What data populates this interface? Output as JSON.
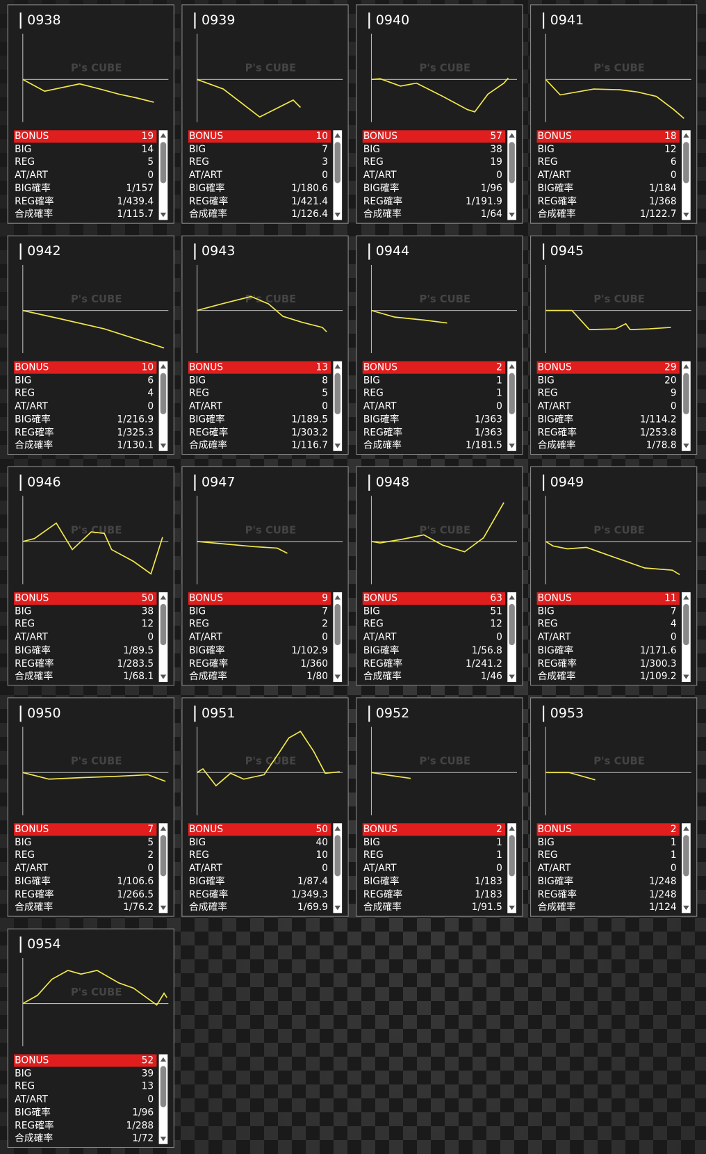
{
  "row_labels": [
    "BONUS",
    "BIG",
    "REG",
    "AT/ART",
    "BIG確率",
    "REG確率",
    "合成確率"
  ],
  "watermark": "P's CUBE",
  "graph_xlim": [
    0,
    100
  ],
  "graph_ylim": [
    -60,
    60
  ],
  "cards": [
    {
      "id": "0938",
      "values": [
        19,
        14,
        5,
        0,
        "1/157",
        "1/439.4",
        "1/115.7"
      ],
      "graph": {
        "x": [
          0,
          15,
          39,
          53,
          66,
          78,
          90
        ],
        "y": [
          0,
          -16,
          -6,
          -13,
          -20,
          -25,
          -31
        ]
      }
    },
    {
      "id": "0939",
      "values": [
        10,
        7,
        3,
        0,
        "1/180.6",
        "1/421.4",
        "1/126.4"
      ],
      "graph": {
        "x": [
          0,
          18,
          43,
          66,
          71
        ],
        "y": [
          0,
          -13,
          -51,
          -28,
          -38
        ]
      }
    },
    {
      "id": "0940",
      "values": [
        57,
        38,
        19,
        0,
        "1/96",
        "1/191.9",
        "1/64"
      ],
      "graph": {
        "x": [
          0,
          6,
          20,
          31,
          49,
          66,
          71,
          80,
          91,
          94
        ],
        "y": [
          0,
          1,
          -9,
          -5,
          -23,
          -41,
          -44,
          -20,
          -5,
          2
        ]
      }
    },
    {
      "id": "0941",
      "values": [
        18,
        12,
        6,
        0,
        "1/184",
        "1/368",
        "1/122.7"
      ],
      "graph": {
        "x": [
          0,
          10,
          33,
          51,
          63,
          76,
          88,
          95
        ],
        "y": [
          0,
          -21,
          -13,
          -14,
          -17,
          -23,
          -41,
          -53
        ]
      }
    },
    {
      "id": "0942",
      "values": [
        10,
        6,
        4,
        0,
        "1/216.9",
        "1/325.3",
        "1/130.1"
      ],
      "graph": {
        "x": [
          0,
          25,
          56,
          97
        ],
        "y": [
          0,
          -11,
          -25,
          -51
        ]
      }
    },
    {
      "id": "0943",
      "values": [
        13,
        8,
        5,
        0,
        "1/189.5",
        "1/303.2",
        "1/116.7"
      ],
      "graph": {
        "x": [
          0,
          17,
          37,
          49,
          59,
          72,
          86,
          89
        ],
        "y": [
          0,
          9,
          19,
          9,
          -8,
          -16,
          -23,
          -29
        ]
      }
    },
    {
      "id": "0944",
      "values": [
        2,
        1,
        1,
        0,
        "1/363",
        "1/363",
        "1/181.5"
      ],
      "graph": {
        "x": [
          0,
          16,
          36,
          52
        ],
        "y": [
          0,
          -9,
          -13,
          -17
        ]
      }
    },
    {
      "id": "0945",
      "values": [
        29,
        20,
        9,
        0,
        "1/114.2",
        "1/253.8",
        "1/78.8"
      ],
      "graph": {
        "x": [
          0,
          18,
          30,
          48,
          55,
          58,
          71,
          86
        ],
        "y": [
          0,
          0,
          -26,
          -25,
          -18,
          -26,
          -25,
          -23
        ]
      }
    },
    {
      "id": "0946",
      "values": [
        50,
        38,
        12,
        0,
        "1/89.5",
        "1/283.5",
        "1/68.1"
      ],
      "graph": {
        "x": [
          0,
          8,
          23,
          34,
          47,
          56,
          61,
          76,
          88,
          96
        ],
        "y": [
          0,
          4,
          25,
          -11,
          13,
          11,
          -11,
          -27,
          -44,
          6
        ]
      }
    },
    {
      "id": "0947",
      "values": [
        9,
        7,
        2,
        0,
        "1/102.9",
        "1/360",
        "1/80"
      ],
      "graph": {
        "x": [
          0,
          17,
          39,
          55,
          62
        ],
        "y": [
          0,
          -3,
          -7,
          -9,
          -16
        ]
      }
    },
    {
      "id": "0948",
      "values": [
        63,
        51,
        12,
        0,
        "1/56.8",
        "1/241.2",
        "1/46"
      ],
      "graph": {
        "x": [
          0,
          6,
          21,
          36,
          49,
          64,
          77,
          91
        ],
        "y": [
          0,
          -2,
          3,
          9,
          -5,
          -14,
          5,
          53
        ]
      }
    },
    {
      "id": "0949",
      "values": [
        11,
        7,
        4,
        0,
        "1/171.6",
        "1/300.3",
        "1/109.2"
      ],
      "graph": {
        "x": [
          0,
          5,
          15,
          28,
          45,
          68,
          87,
          92
        ],
        "y": [
          0,
          -6,
          -10,
          -8,
          -20,
          -36,
          -39,
          -45
        ]
      }
    },
    {
      "id": "0950",
      "values": [
        7,
        5,
        2,
        0,
        "1/106.6",
        "1/266.5",
        "1/76.2"
      ],
      "graph": {
        "x": [
          0,
          18,
          40,
          66,
          86,
          98
        ],
        "y": [
          0,
          -9,
          -7,
          -5,
          -3,
          -12
        ]
      }
    },
    {
      "id": "0951",
      "values": [
        50,
        40,
        10,
        0,
        "1/87.4",
        "1/349.3",
        "1/69.9"
      ],
      "graph": {
        "x": [
          0,
          4,
          13,
          23,
          32,
          46,
          55,
          63,
          71,
          80,
          88,
          98
        ],
        "y": [
          0,
          5,
          -18,
          -1,
          -9,
          -3,
          23,
          47,
          56,
          29,
          -1,
          1
        ]
      }
    },
    {
      "id": "0952",
      "values": [
        2,
        1,
        1,
        0,
        "1/183",
        "1/183",
        "1/91.5"
      ],
      "graph": {
        "x": [
          0,
          13,
          27
        ],
        "y": [
          0,
          -4,
          -8
        ]
      }
    },
    {
      "id": "0953",
      "values": [
        2,
        1,
        1,
        0,
        "1/248",
        "1/248",
        "1/124"
      ],
      "graph": {
        "x": [
          0,
          16,
          34
        ],
        "y": [
          0,
          0,
          -10
        ]
      }
    },
    {
      "id": "0954",
      "values": [
        52,
        39,
        13,
        0,
        "1/96",
        "1/288",
        "1/72"
      ],
      "graph": {
        "x": [
          0,
          10,
          20,
          31,
          40,
          51,
          66,
          76,
          92,
          97,
          99
        ],
        "y": [
          0,
          11,
          33,
          45,
          40,
          45,
          28,
          21,
          -2,
          14,
          8
        ]
      }
    }
  ]
}
